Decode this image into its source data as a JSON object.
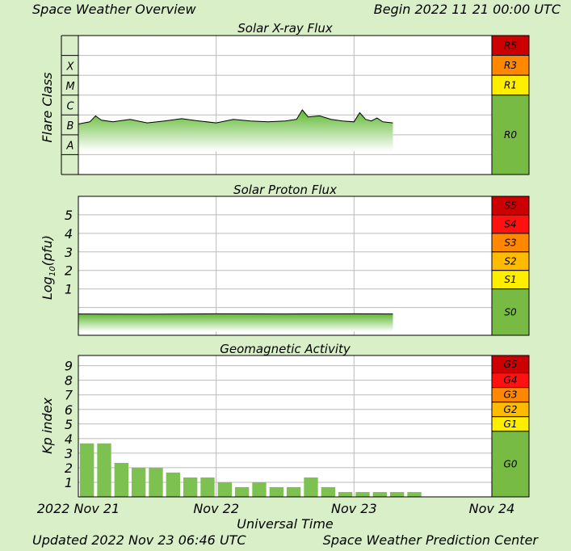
{
  "header": {
    "left": "Space Weather Overview",
    "right": "Begin 2022 11 21 00:00 UTC"
  },
  "footer": {
    "left": "Updated 2022 Nov 23 06:46 UTC",
    "right": "Space Weather Prediction Center"
  },
  "chart_data": [
    {
      "type": "line",
      "title": "Solar X-ray Flux",
      "ylabel": "Flare Class",
      "y_scale": "log",
      "ylim": [
        1e-09,
        0.01
      ],
      "y_ticks": [
        {
          "label": "A",
          "value": 3e-08
        },
        {
          "label": "B",
          "value": 3e-07
        },
        {
          "label": "C",
          "value": 3e-06
        },
        {
          "label": "M",
          "value": 3e-05
        },
        {
          "label": "X",
          "value": 0.0003
        }
      ],
      "x_range": [
        "2022-11-21 00:00",
        "2022-11-24 00:00"
      ],
      "series": [
        {
          "points": [
            [
              "2022-11-21 00:00",
              3.5e-07
            ],
            [
              "2022-11-21 02:00",
              4.5e-07
            ],
            [
              "2022-11-21 03:00",
              9e-07
            ],
            [
              "2022-11-21 04:00",
              5.5e-07
            ],
            [
              "2022-11-21 06:00",
              4.5e-07
            ],
            [
              "2022-11-21 09:00",
              6e-07
            ],
            [
              "2022-11-21 12:00",
              4e-07
            ],
            [
              "2022-11-21 15:00",
              5e-07
            ],
            [
              "2022-11-21 18:00",
              6.5e-07
            ],
            [
              "2022-11-21 21:00",
              5e-07
            ],
            [
              "2022-11-22 00:00",
              4e-07
            ],
            [
              "2022-11-22 03:00",
              6e-07
            ],
            [
              "2022-11-22 06:00",
              5e-07
            ],
            [
              "2022-11-22 09:00",
              4.5e-07
            ],
            [
              "2022-11-22 12:00",
              5e-07
            ],
            [
              "2022-11-22 14:00",
              6e-07
            ],
            [
              "2022-11-22 15:00",
              1.8e-06
            ],
            [
              "2022-11-22 16:00",
              8e-07
            ],
            [
              "2022-11-22 18:00",
              9e-07
            ],
            [
              "2022-11-22 20:00",
              6e-07
            ],
            [
              "2022-11-22 22:00",
              5e-07
            ],
            [
              "2022-11-23 00:00",
              4.5e-07
            ],
            [
              "2022-11-23 01:00",
              1.3e-06
            ],
            [
              "2022-11-23 02:00",
              6e-07
            ],
            [
              "2022-11-23 03:00",
              5e-07
            ],
            [
              "2022-11-23 04:00",
              7e-07
            ],
            [
              "2022-11-23 05:00",
              4.5e-07
            ],
            [
              "2022-11-23 06:46",
              4e-07
            ]
          ]
        }
      ],
      "scale_labels": [
        "R5",
        "R3",
        "R1",
        "R0"
      ],
      "scale_colors": {
        "R5": "#cc0000",
        "R3": "#ff8800",
        "R1": "#ffee00",
        "R0": "#77bb44"
      }
    },
    {
      "type": "line",
      "title": "Solar Proton Flux",
      "ylabel": "Log10(pfu)",
      "ylim": [
        -1.5,
        6
      ],
      "y_ticks": [
        1,
        2,
        3,
        4,
        5
      ],
      "x_range": [
        "2022-11-21 00:00",
        "2022-11-24 00:00"
      ],
      "series": [
        {
          "points": [
            [
              "2022-11-21 00:00",
              -0.35
            ],
            [
              "2022-11-21 12:00",
              -0.36
            ],
            [
              "2022-11-22 00:00",
              -0.34
            ],
            [
              "2022-11-22 12:00",
              -0.35
            ],
            [
              "2022-11-23 00:00",
              -0.34
            ],
            [
              "2022-11-23 06:46",
              -0.35
            ]
          ]
        }
      ],
      "scale_labels": [
        "S5",
        "S4",
        "S3",
        "S2",
        "S1",
        "S0"
      ],
      "scale_colors": {
        "S5": "#cc0000",
        "S4": "#ff1111",
        "S3": "#ff8800",
        "S2": "#ffbb00",
        "S1": "#ffee00",
        "S0": "#77bb44"
      }
    },
    {
      "type": "bar",
      "title": "Geomagnetic Activity",
      "ylabel": "Kp index",
      "ylim": [
        0,
        9.7
      ],
      "y_ticks": [
        1,
        2,
        3,
        4,
        5,
        6,
        7,
        8,
        9
      ],
      "x_range": [
        "2022-11-21 00:00",
        "2022-11-24 00:00"
      ],
      "x_ticks": [
        "2022 Nov 21",
        "Nov 22",
        "Nov 23",
        "Nov 24"
      ],
      "xlabel": "Universal Time",
      "interval_hours": 3,
      "values": [
        3.67,
        3.67,
        2.33,
        2.0,
        2.0,
        1.67,
        1.33,
        1.33,
        1.0,
        0.67,
        1.0,
        0.67,
        0.67,
        1.33,
        0.67,
        0.33,
        0.33,
        0.33,
        0.33,
        0.33
      ],
      "scale_labels": [
        "G5",
        "G4",
        "G3",
        "G2",
        "G1",
        "G0"
      ],
      "scale_colors": {
        "G5": "#cc0000",
        "G4": "#ff1111",
        "G3": "#ff8800",
        "G2": "#ffbb00",
        "G1": "#ffee00",
        "G0": "#77bb44"
      }
    }
  ]
}
